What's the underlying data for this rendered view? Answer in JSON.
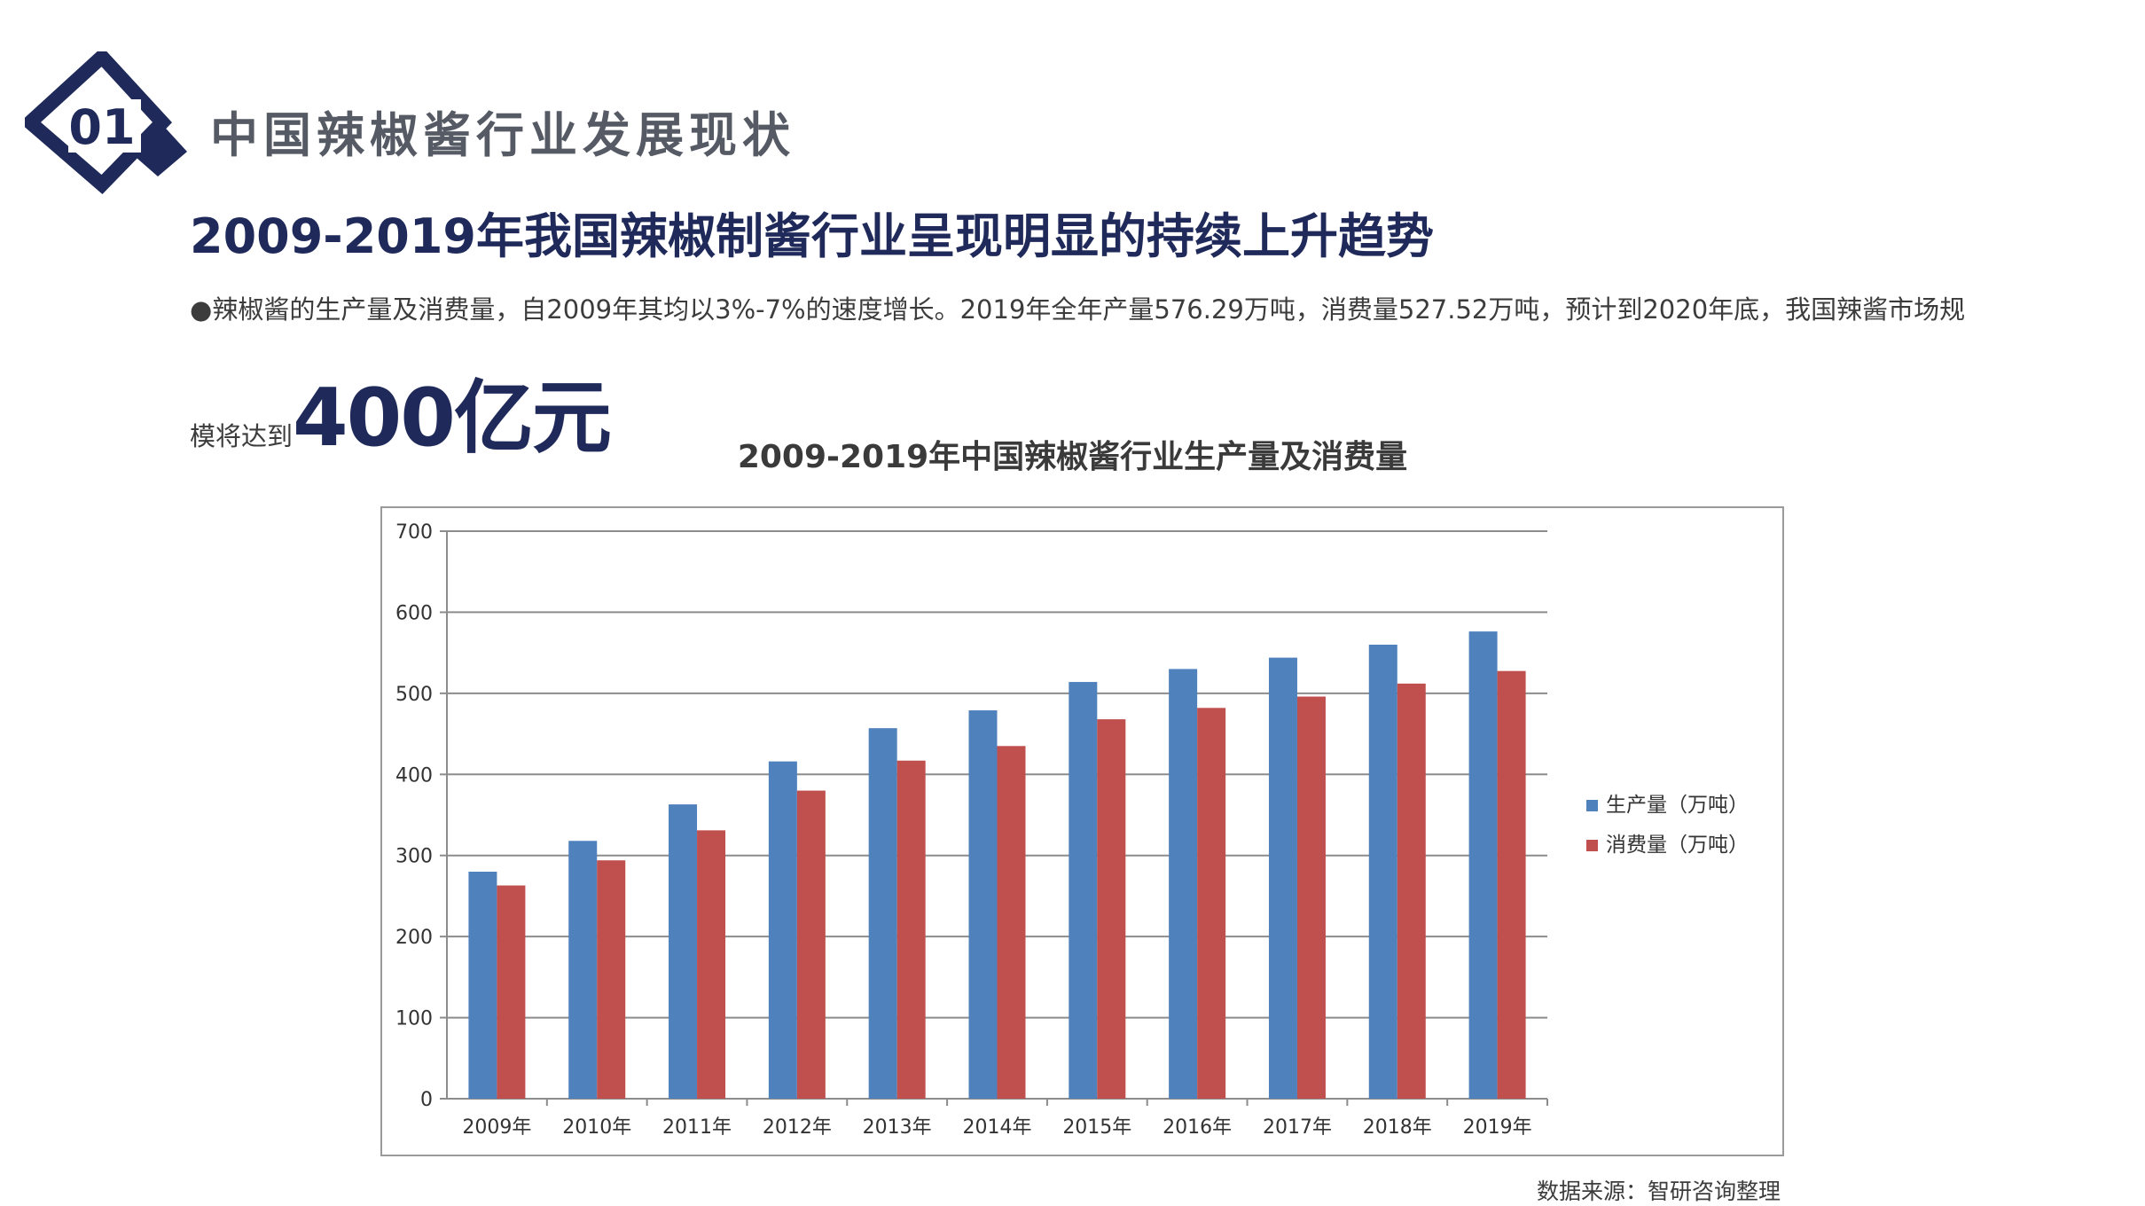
{
  "section": {
    "number": "01",
    "title": "中国辣椒酱行业发展现状"
  },
  "headline": "2009-2019年我国辣椒制酱行业呈现明显的持续上升趋势",
  "paragraph": {
    "bullet": "●",
    "text": "辣椒酱的生产量及消费量，自2009年其均以3%-7%的速度增长。2019年全年产量576.29万吨，消费量527.52万吨，预计到2020年底，我国辣酱市场规",
    "continuation": "模将达到",
    "highlight": "400亿元"
  },
  "source": "数据来源：智研咨询整理",
  "colors": {
    "navy": "#1f2a5a",
    "production": "#4f81bd",
    "consumption": "#c0504d",
    "grid": "#8c8c8c"
  },
  "chart_data": {
    "type": "bar",
    "title": "2009-2019年中国辣椒酱行业生产量及消费量",
    "categories": [
      "2009年",
      "2010年",
      "2011年",
      "2012年",
      "2013年",
      "2014年",
      "2015年",
      "2016年",
      "2017年",
      "2018年",
      "2019年"
    ],
    "series": [
      {
        "name": "生产量（万吨）",
        "color": "#4f81bd",
        "values": [
          280,
          318,
          363,
          416,
          457,
          479,
          514,
          530,
          544,
          560,
          576.29
        ]
      },
      {
        "name": "消费量（万吨）",
        "color": "#c0504d",
        "values": [
          263,
          294,
          331,
          380,
          417,
          435,
          468,
          482,
          496,
          512,
          527.52
        ]
      }
    ],
    "yticks": [
      0,
      100,
      200,
      300,
      400,
      500,
      600,
      700
    ],
    "ylim": [
      0,
      700
    ],
    "grid": true,
    "legend": "right"
  }
}
